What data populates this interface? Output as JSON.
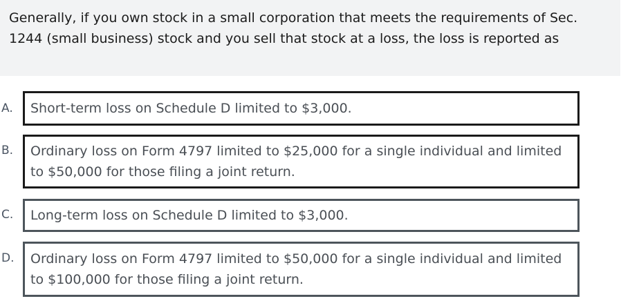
{
  "question": {
    "text": "Generally, if you own stock in a small corporation that meets the requirements of Sec. 1244 (small business) stock and you sell that stock at a loss, the loss is reported as"
  },
  "options": [
    {
      "letter": "A.",
      "text": "Short-term loss on Schedule D limited to $3,000."
    },
    {
      "letter": "B.",
      "text": "Ordinary loss on Form 4797 limited to $25,000 for a single individual and limited to $50,000 for those filing a joint return."
    },
    {
      "letter": "C.",
      "text": "Long-term loss on Schedule D limited to $3,000."
    },
    {
      "letter": "D.",
      "text": "Ordinary loss on Form 4797 limited to $50,000 for a single individual and limited to $100,000 for those filing a joint return."
    }
  ]
}
